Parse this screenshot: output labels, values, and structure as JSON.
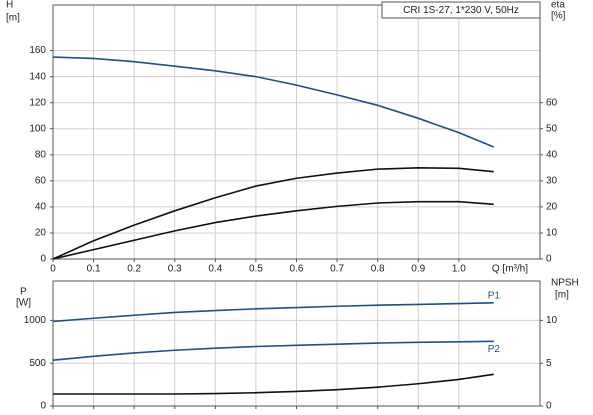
{
  "chart_data": [
    {
      "type": "line",
      "title": "CRI 1S-27, 1*230 V, 50Hz",
      "ylabel": [
        "H",
        "[m]"
      ],
      "y2label": [
        "eta",
        "[%]"
      ],
      "xlabel": "Q [m³/h]",
      "x": [
        0,
        0.1,
        0.2,
        0.3,
        0.4,
        0.5,
        0.6,
        0.7,
        0.8,
        0.9,
        1.0,
        1.086
      ],
      "xlim": [
        0,
        1.2
      ],
      "xticks": [
        0,
        0.1,
        0.2,
        0.3,
        0.4,
        0.5,
        0.6,
        0.7,
        0.8,
        0.9,
        {
          "value": 1,
          "label": "1.0"
        }
      ],
      "ylim": [
        0,
        195
      ],
      "yticks": [
        0,
        20,
        40,
        60,
        80,
        100,
        120,
        140,
        160
      ],
      "y2lim": [
        0,
        97.5
      ],
      "y2ticks": [
        0,
        10,
        20,
        30,
        40,
        50,
        60
      ],
      "grid": true,
      "series": [
        {
          "color": "#1f4e8c",
          "axis": "y",
          "values": [
            155,
            154,
            151.5,
            148,
            144.5,
            140,
            133.5,
            126,
            118,
            108,
            97,
            86
          ]
        },
        {
          "color": "#111111",
          "axis": "y2",
          "values": [
            0,
            7,
            13,
            18.5,
            23.5,
            28,
            31,
            33,
            34.5,
            35,
            34.8,
            33.5
          ]
        },
        {
          "color": "#111111",
          "axis": "y2",
          "values": [
            0,
            3.6,
            7.2,
            10.8,
            14,
            16.5,
            18.5,
            20.2,
            21.5,
            22,
            22,
            21
          ]
        }
      ]
    },
    {
      "type": "line",
      "ylabel": [
        "P",
        "[W]"
      ],
      "y2label": [
        "NPSH",
        "[m]"
      ],
      "x": [
        0,
        0.1,
        0.2,
        0.3,
        0.4,
        0.5,
        0.6,
        0.7,
        0.8,
        0.9,
        1.0,
        1.086
      ],
      "xlim": [
        0,
        1.2
      ],
      "xticks": [
        0,
        0.1,
        0.2,
        0.3,
        0.4,
        0.5,
        0.6,
        0.7,
        0.8,
        0.9,
        1
      ],
      "ylim": [
        0,
        1460
      ],
      "yticks": [
        0,
        500,
        1000
      ],
      "y2lim": [
        0,
        14.6
      ],
      "y2ticks": [
        0,
        5,
        10
      ],
      "grid": true,
      "series": [
        {
          "name": "P1",
          "color": "#1f4e8c",
          "axis": "y",
          "values": [
            988,
            1025,
            1060,
            1093,
            1115,
            1135,
            1150,
            1165,
            1178,
            1186,
            1196,
            1205
          ]
        },
        {
          "name": "P2",
          "color": "#1f4e8c",
          "axis": "y",
          "values": [
            535,
            580,
            620,
            651,
            675,
            695,
            709,
            722,
            735,
            744,
            750,
            756
          ]
        },
        {
          "color": "#111111",
          "axis": "y2",
          "values": [
            1.4,
            1.4,
            1.4,
            1.4,
            1.45,
            1.55,
            1.7,
            1.9,
            2.2,
            2.6,
            3.1,
            3.7
          ]
        }
      ]
    }
  ]
}
